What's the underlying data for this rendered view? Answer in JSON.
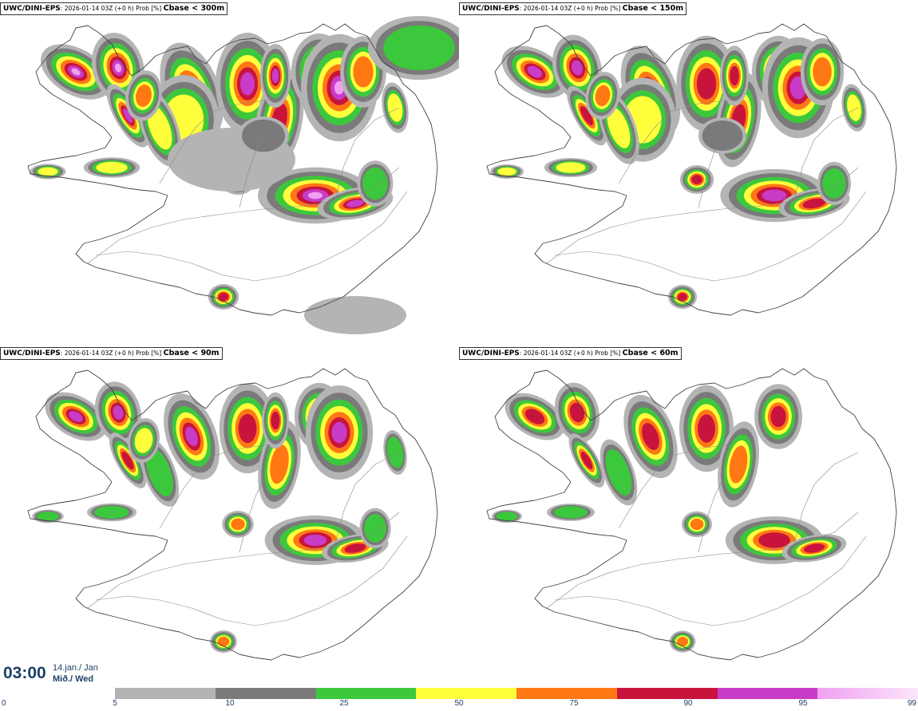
{
  "panels": [
    {
      "model": "UWC/DINI-EPS",
      "meta": ": 2026-01-14 03Z (+0 h) Prob [%] ",
      "variable": "Cbase < 300m",
      "intensity": 1.0
    },
    {
      "model": "UWC/DINI-EPS",
      "meta": ": 2026-01-14 03Z (+0 h) Prob [%] ",
      "variable": "Cbase < 150m",
      "intensity": 0.8
    },
    {
      "model": "UWC/DINI-EPS",
      "meta": ": 2026-01-14 03Z (+0 h) Prob [%] ",
      "variable": "Cbase < 90m",
      "intensity": 0.6
    },
    {
      "model": "UWC/DINI-EPS",
      "meta": ": 2026-01-14 03Z (+0 h) Prob [%] ",
      "variable": "Cbase < 60m",
      "intensity": 0.5
    }
  ],
  "valid_time": {
    "time": "03:00",
    "date_line1": "14.jan./ Jan",
    "date_line2": "Mið./ Wed"
  },
  "colorbar": {
    "ticks": [
      "0",
      "5",
      "10",
      "25",
      "50",
      "75",
      "90",
      "95",
      "99"
    ],
    "colors": [
      "#b4b4b4",
      "#7a7a7a",
      "#3cc83c",
      "#ffff3c",
      "#ff7814",
      "#c8143c",
      "#c83cc8",
      "#f0a0f0"
    ]
  },
  "map_colors": {
    "coast": "#444444",
    "roads": "#888888",
    "land": "#ffffff"
  }
}
